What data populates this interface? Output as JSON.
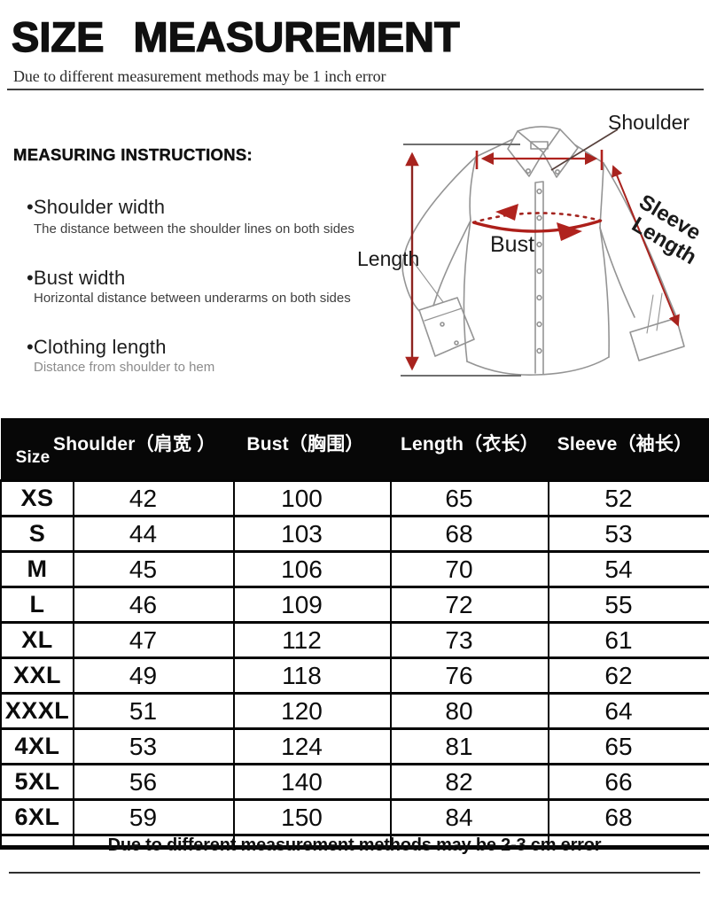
{
  "header": {
    "title": "SIZE MEASUREMENT",
    "subtitle": "Due to different measurement methods may be 1 inch error"
  },
  "instructions": {
    "heading": "MEASURING INSTRUCTIONS:",
    "items": [
      {
        "term": "•Shoulder width",
        "description": "The distance between the shoulder lines on both sides"
      },
      {
        "term": "•Bust width",
        "description": "Horizontal distance between underarms on both sides"
      },
      {
        "term": "•Clothing length",
        "description": "Distance from shoulder to hem"
      }
    ]
  },
  "diagram": {
    "shoulder_label": "Shoulder",
    "sleeve_label_line1": "Sleeve",
    "sleeve_label_line2": "Length",
    "bust_label": "Bust",
    "length_label": "Length",
    "annotation_color": "#b0231e",
    "outline_color": "#949494"
  },
  "size_table": {
    "columns": [
      "Size",
      "Shoulder（肩宽 ）",
      "Bust（胸围）",
      "Length（衣长）",
      "Sleeve（袖长）"
    ],
    "rows": [
      [
        "XS",
        "42",
        "100",
        "65",
        "52"
      ],
      [
        "S",
        "44",
        "103",
        "68",
        "53"
      ],
      [
        "M",
        "45",
        "106",
        "70",
        "54"
      ],
      [
        "L",
        "46",
        "109",
        "72",
        "55"
      ],
      [
        "XL",
        "47",
        "112",
        "73",
        "61"
      ],
      [
        "XXL",
        "49",
        "118",
        "76",
        "62"
      ],
      [
        "XXXL",
        "51",
        "120",
        "80",
        "64"
      ],
      [
        "4XL",
        "53",
        "124",
        "81",
        "65"
      ],
      [
        "5XL",
        "56",
        "140",
        "82",
        "66"
      ],
      [
        "6XL",
        "59",
        "150",
        "84",
        "68"
      ]
    ]
  },
  "footer": {
    "note": "Due to different measurement methods may be 2-3 cm error"
  }
}
